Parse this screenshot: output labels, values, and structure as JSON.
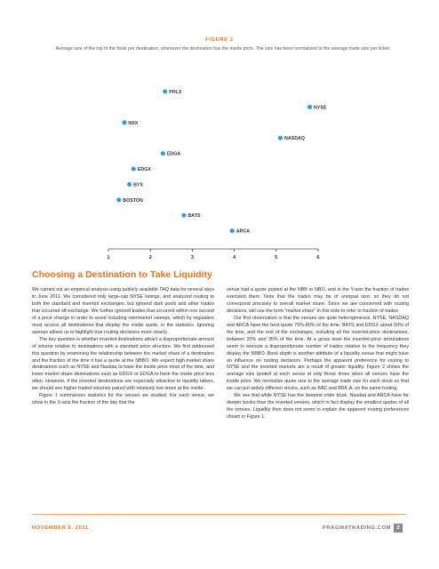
{
  "figure": {
    "label": "FIGURE 2",
    "caption": "Average size of the top of the book per destination, whenever the destination has the inside price. The size has been normalized to the average trade size per ticker."
  },
  "chart_data": {
    "type": "scatter",
    "title": "",
    "xlabel": "",
    "ylabel": "",
    "xlim": [
      1,
      6
    ],
    "x_ticks": [
      "1",
      "2",
      "3",
      "4",
      "5",
      "6"
    ],
    "grid": false,
    "legend": "none",
    "marker_color": "#2a9fd6",
    "points": [
      {
        "label": "PHLX",
        "x": 2.35
      },
      {
        "label": "NYSE",
        "x": 5.8
      },
      {
        "label": "NSX",
        "x": 1.38
      },
      {
        "label": "NASDAQ",
        "x": 5.1
      },
      {
        "label": "EDGA",
        "x": 2.3
      },
      {
        "label": "EDGX",
        "x": 1.6
      },
      {
        "label": "BYX",
        "x": 1.5
      },
      {
        "label": "BOSTON",
        "x": 1.25
      },
      {
        "label": "BATS",
        "x": 2.8
      },
      {
        "label": "ARCA",
        "x": 3.95
      }
    ]
  },
  "section": {
    "title": "Choosing a Destination to Take Liquidity"
  },
  "body": {
    "left": [
      "We carried out an empirical analysis using publicly available TAQ data for several days in June 2011. We considered only large-cap NYSE listings, and analyzed routing to both the standard and inverted exchanges, but ignored dark pools and other trades that occurred off-exchange. We further ignored trades that occurred within one second of a price change in order to avoid including intermarket sweeps, which by regulation must access all destinations that display the inside quote, in the statistics. Ignoring sweeps allows us to highlight true routing decisions more clearly.",
      "The key question is whether inverted destinations attract a disproportionate amount of volume relative to destinations with a standard price structure. We first addressed this question by examining the relationship between the market share of a destination and the fraction of the time it has a quote at the NBBO. We expect high market share destinations such as NYSE and Nasdaq to have the inside price most of the time, and lower market share destinations such as EDGX or EDGA to have the inside price less often. However, if the inverted destinations are especially attractive to liquidity takers, we should see higher traded volumes paired with relatively low times at the inside.",
      "Figure 1 summarizes statistics for the venues we studied. For each venue, we show in the X-axis the fraction of the day that the"
    ],
    "right": [
      "venue had a quote posted at the NBB or NBO, and in the Y-axis the fraction of trades executed there. Note that the trades may be of unequal size, so they do not correspond precisely to overall market share. Since we are concerned with routing decisions, will use the term “market share” in this note to refer to fraction of trades.",
      "Our first observation is that the venues are quite heterogeneous. NYSE, NASDAQ and ARCA have the best quote 75%-80% of the time, BATS and EDGX about 60% of the time, and the rest of the exchanges, including all the inverted-price destinations, between 20% and 35% of the time. At a gross level the inverted-price destinations seem to execute a disproportionate number of trades relative to the frequency they display the NBBO. Book depth is another attribute of a liquidity venue that might have an influence on routing decisions. Perhaps the apparent preference for routing to NYSE and the inverted markets are a result of greater liquidity. Figure 2 shows the average size quoted at each venue at only those times when all venues have the inside price. We normalize quote size to the average trade size for each stock so that we can put widely different stocks, such as BAC and BRK.A, on the same footing.",
      "We see that while NYSE has the deepest order book, Nasdaq and ARCA have far deeper books than the inverted venues, which in fact display the smallest quotes of all the venues. Liquidity then does not seem to explain the apparent routing preferences shown in Figure 1."
    ]
  },
  "footer": {
    "date": "NOVEMBER 9, 2011",
    "site": "PRAGMATRADING.COM",
    "page": "2"
  }
}
